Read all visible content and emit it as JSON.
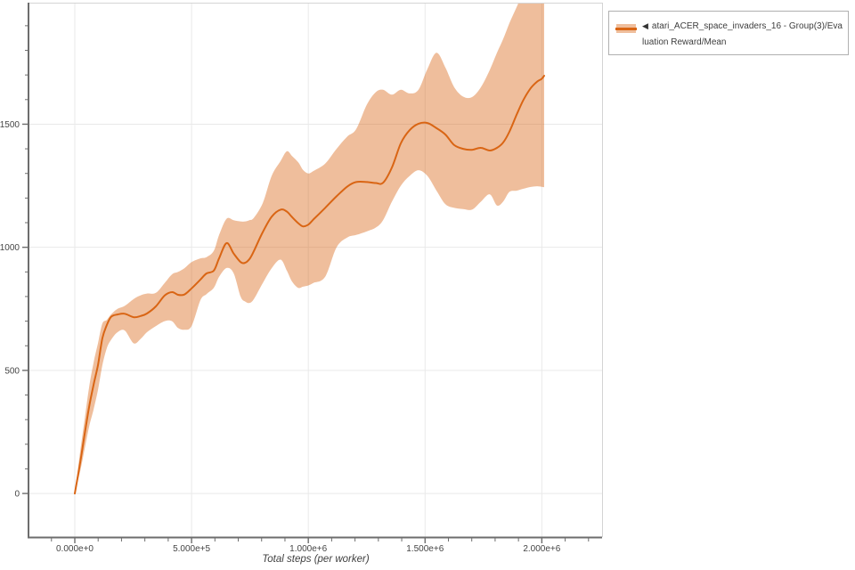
{
  "legend": {
    "collapse_icon": "◀",
    "items": [
      {
        "label": "atari_ACER_space_invaders_16 - Group(3)/Evaluation Reward/Mean",
        "line_color": "#d96514",
        "band_color": "rgba(217,101,20,0.42)"
      }
    ]
  },
  "colors": {
    "line": "#d96514",
    "band": "rgba(217,101,20,0.42)",
    "grid": "#e9e9e9",
    "axis": "#6d6d6d",
    "border": "#d4d4d4",
    "tick_label": "#444444",
    "axis_title": "#3f3f3f"
  },
  "chart_data": {
    "type": "line",
    "title": "",
    "xlabel": "Total steps (per worker)",
    "ylabel": "",
    "grid": true,
    "legend_position": "top-right-outside",
    "xlim": [
      -194500,
      2258000
    ],
    "ylim": [
      -177,
      1990
    ],
    "x_axis": {
      "majors": [
        {
          "v": 0,
          "label": "0.000e+0"
        },
        {
          "v": 500000,
          "label": "5.000e+5"
        },
        {
          "v": 1000000,
          "label": "1.000e+6"
        },
        {
          "v": 1500000,
          "label": "1.500e+6"
        },
        {
          "v": 2000000,
          "label": "2.000e+6"
        }
      ],
      "minor_from": -100000,
      "minor_to": 2200000,
      "minor_step": 100000
    },
    "y_axis": {
      "majors": [
        {
          "v": 0,
          "label": "0"
        },
        {
          "v": 500,
          "label": "500"
        },
        {
          "v": 1000,
          "label": "1000"
        },
        {
          "v": 1500,
          "label": "1500"
        }
      ],
      "minor_from": 100,
      "minor_to": 1900,
      "minor_step": 100
    },
    "series": [
      {
        "name": "atari_ACER_space_invaders_16 - Group(3)/Evaluation Reward/Mean",
        "color": "#d96514",
        "band_color": "rgba(217,101,20,0.42)",
        "points_format": [
          "steps",
          "mean",
          "lower",
          "upper"
        ],
        "points": [
          [
            0,
            0,
            0,
            0
          ],
          [
            23000,
            125,
            90,
            170
          ],
          [
            42000,
            240,
            180,
            300
          ],
          [
            61000,
            350,
            270,
            430
          ],
          [
            80000,
            440,
            340,
            530
          ],
          [
            99000,
            521,
            420,
            610
          ],
          [
            118000,
            630,
            520,
            690
          ],
          [
            137000,
            684,
            590,
            705
          ],
          [
            156000,
            718,
            625,
            728
          ],
          [
            183000,
            727,
            655,
            750
          ],
          [
            214000,
            730,
            662,
            762
          ],
          [
            252000,
            716,
            610,
            790
          ],
          [
            282000,
            721,
            628,
            805
          ],
          [
            309000,
            731,
            655,
            812
          ],
          [
            347000,
            760,
            680,
            815
          ],
          [
            385000,
            804,
            700,
            855
          ],
          [
            416000,
            818,
            700,
            890
          ],
          [
            442000,
            807,
            672,
            900
          ],
          [
            469000,
            808,
            665,
            915
          ],
          [
            500000,
            833,
            680,
            940
          ],
          [
            538000,
            869,
            785,
            955
          ],
          [
            564000,
            894,
            810,
            960
          ],
          [
            595000,
            905,
            835,
            985
          ],
          [
            618000,
            955,
            880,
            1050
          ],
          [
            650000,
            1017,
            916,
            1116
          ],
          [
            680000,
            975,
            895,
            1110
          ],
          [
            710000,
            940,
            800,
            1105
          ],
          [
            729000,
            937,
            780,
            1105
          ],
          [
            748000,
            952,
            774,
            1110
          ],
          [
            767000,
            985,
            790,
            1120
          ],
          [
            805000,
            1062,
            855,
            1180
          ],
          [
            843000,
            1124,
            915,
            1290
          ],
          [
            881000,
            1153,
            950,
            1350
          ],
          [
            908000,
            1145,
            905,
            1390
          ],
          [
            931000,
            1122,
            860,
            1370
          ],
          [
            957000,
            1098,
            835,
            1345
          ],
          [
            977000,
            1085,
            840,
            1315
          ],
          [
            1000000,
            1092,
            845,
            1300
          ],
          [
            1022000,
            1113,
            855,
            1310
          ],
          [
            1072000,
            1160,
            880,
            1340
          ],
          [
            1121000,
            1207,
            1000,
            1400
          ],
          [
            1167000,
            1247,
            1040,
            1450
          ],
          [
            1205000,
            1265,
            1050,
            1480
          ],
          [
            1251000,
            1265,
            1065,
            1580
          ],
          [
            1289000,
            1261,
            1080,
            1630
          ],
          [
            1320000,
            1262,
            1110,
            1640
          ],
          [
            1358000,
            1324,
            1185,
            1620
          ],
          [
            1396000,
            1422,
            1250,
            1640
          ],
          [
            1434000,
            1476,
            1290,
            1625
          ],
          [
            1472000,
            1502,
            1313,
            1640
          ],
          [
            1510000,
            1505,
            1290,
            1724
          ],
          [
            1549000,
            1484,
            1230,
            1790
          ],
          [
            1587000,
            1458,
            1175,
            1730
          ],
          [
            1625000,
            1415,
            1160,
            1650
          ],
          [
            1663000,
            1400,
            1155,
            1612
          ],
          [
            1701000,
            1396,
            1153,
            1610
          ],
          [
            1739000,
            1404,
            1185,
            1650
          ],
          [
            1777000,
            1393,
            1215,
            1720
          ],
          [
            1808000,
            1404,
            1170,
            1790
          ],
          [
            1834000,
            1425,
            1185,
            1845
          ],
          [
            1861000,
            1469,
            1225,
            1910
          ],
          [
            1892000,
            1538,
            1230,
            1975
          ],
          [
            1922000,
            1600,
            1238,
            2040
          ],
          [
            1953000,
            1647,
            1245,
            2090
          ],
          [
            1980000,
            1673,
            1248,
            2110
          ],
          [
            1999000,
            1684,
            1246,
            2120
          ],
          [
            2010000,
            1697,
            1244,
            2125
          ]
        ]
      }
    ]
  }
}
